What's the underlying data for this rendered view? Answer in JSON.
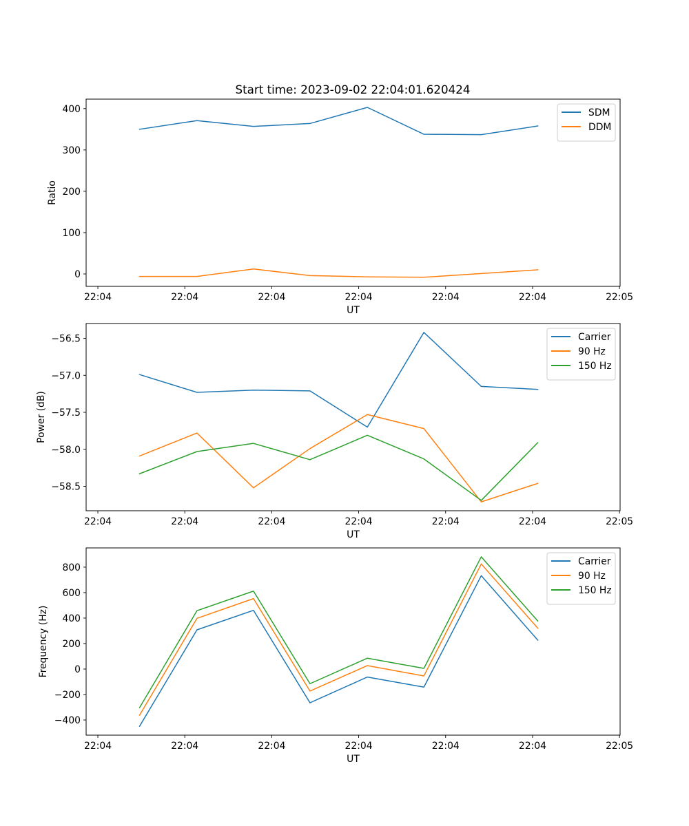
{
  "figure": {
    "title": "Start time: 2023-09-02 22:04:01.620424",
    "background": "#ffffff"
  },
  "chart_data": [
    {
      "type": "line",
      "title": "Start time: 2023-09-02 22:04:01.620424",
      "xlabel": "UT",
      "ylabel": "Ratio",
      "x_unit": "seconds after 22:04:00",
      "x": [
        4.8,
        11.4,
        17.9,
        24.4,
        31.0,
        37.5,
        44.1,
        50.6
      ],
      "xlim": [
        -1.35,
        60.07
      ],
      "xticks": [
        0,
        10,
        20,
        30,
        40,
        50,
        60
      ],
      "xtick_labels": [
        "22:04",
        "22:04",
        "22:04",
        "22:04",
        "22:04",
        "22:04",
        "22:05"
      ],
      "ylim": [
        -30,
        423
      ],
      "yticks": [
        0,
        100,
        200,
        300,
        400
      ],
      "ytick_labels": [
        "0",
        "100",
        "200",
        "300",
        "400"
      ],
      "grid": false,
      "legend": "top-right",
      "series": [
        {
          "name": "SDM",
          "color": "#1f77b4",
          "values": [
            350,
            371,
            357,
            364,
            403,
            338,
            337,
            358
          ]
        },
        {
          "name": "DDM",
          "color": "#ff7f0e",
          "values": [
            -6,
            -6,
            12,
            -4,
            -7,
            -8,
            1,
            10
          ]
        }
      ]
    },
    {
      "type": "line",
      "title": "",
      "xlabel": "UT",
      "ylabel": "Power (dB)",
      "x_unit": "seconds after 22:04:00",
      "x": [
        4.8,
        11.4,
        17.9,
        24.4,
        31.0,
        37.5,
        44.1,
        50.6
      ],
      "xlim": [
        -1.35,
        60.07
      ],
      "xticks": [
        0,
        10,
        20,
        30,
        40,
        50,
        60
      ],
      "xtick_labels": [
        "22:04",
        "22:04",
        "22:04",
        "22:04",
        "22:04",
        "22:04",
        "22:05"
      ],
      "ylim": [
        -58.83,
        -56.3
      ],
      "yticks": [
        -58.5,
        -58.0,
        -57.5,
        -57.0,
        -56.5
      ],
      "ytick_labels": [
        "−58.5",
        "−58.0",
        "−57.5",
        "−57.0",
        "−56.5"
      ],
      "grid": false,
      "legend": "top-right",
      "series": [
        {
          "name": "Carrier",
          "color": "#1f77b4",
          "values": [
            -56.99,
            -57.23,
            -57.2,
            -57.21,
            -57.7,
            -56.42,
            -57.15,
            -57.19
          ]
        },
        {
          "name": "90 Hz",
          "color": "#ff7f0e",
          "values": [
            -58.09,
            -57.78,
            -58.52,
            -57.99,
            -57.53,
            -57.72,
            -58.71,
            -58.46
          ]
        },
        {
          "name": "150 Hz",
          "color": "#2ca02c",
          "values": [
            -58.33,
            -58.03,
            -57.92,
            -58.14,
            -57.81,
            -58.13,
            -58.69,
            -57.91
          ]
        }
      ]
    },
    {
      "type": "line",
      "title": "",
      "xlabel": "UT",
      "ylabel": "Frequency (Hz)",
      "x_unit": "seconds after 22:04:00",
      "x": [
        4.8,
        11.4,
        17.9,
        24.4,
        31.0,
        37.5,
        44.1,
        50.6
      ],
      "xlim": [
        -1.35,
        60.07
      ],
      "xticks": [
        0,
        10,
        20,
        30,
        40,
        50,
        60
      ],
      "xtick_labels": [
        "22:04",
        "22:04",
        "22:04",
        "22:04",
        "22:04",
        "22:04",
        "22:05"
      ],
      "ylim": [
        -519,
        951
      ],
      "yticks": [
        -400,
        -200,
        0,
        200,
        400,
        600,
        800
      ],
      "ytick_labels": [
        "−400",
        "−200",
        "0",
        "200",
        "400",
        "600",
        "800"
      ],
      "grid": false,
      "legend": "top-right",
      "series": [
        {
          "name": "Carrier",
          "color": "#1f77b4",
          "values": [
            -449,
            308,
            461,
            -265,
            -63,
            -142,
            733,
            227
          ]
        },
        {
          "name": "90 Hz",
          "color": "#ff7f0e",
          "values": [
            -362,
            398,
            553,
            -173,
            27,
            -54,
            825,
            321
          ]
        },
        {
          "name": "150 Hz",
          "color": "#2ca02c",
          "values": [
            -303,
            458,
            612,
            -115,
            85,
            5,
            881,
            377
          ]
        }
      ]
    }
  ]
}
